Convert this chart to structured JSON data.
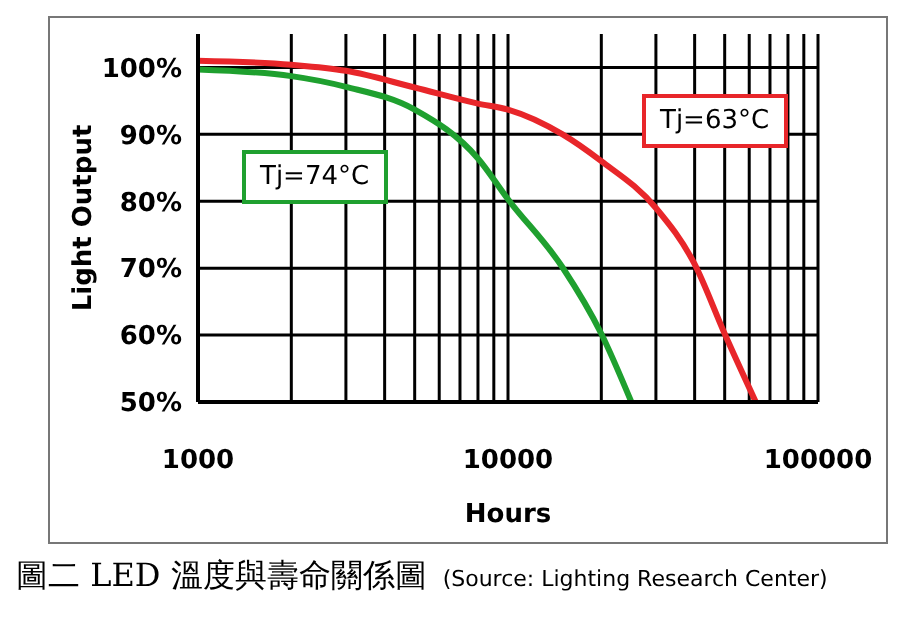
{
  "chart_data": {
    "type": "line",
    "title": "圖二 LED 溫度與壽命關係圖",
    "xlabel": "Hours",
    "ylabel": "Light Output",
    "annotations": [
      "(Source: Lighting Research Center)"
    ],
    "log": "x",
    "grid": true,
    "marker": "none",
    "line_style": "solid",
    "legend": false,
    "xlim": [
      1000,
      100000
    ],
    "xticks": [
      1000,
      10000,
      100000
    ],
    "ylim": [
      50,
      105
    ],
    "yticks": [
      {
        "value": 50,
        "label": "50%"
      },
      {
        "value": 60,
        "label": "60%"
      },
      {
        "value": 70,
        "label": "70%"
      },
      {
        "value": 80,
        "label": "80%"
      },
      {
        "value": 90,
        "label": "90%"
      },
      {
        "value": 100,
        "label": "100%"
      }
    ],
    "series": [
      {
        "name": "Tj=63°C",
        "color": "#e8262a",
        "x": [
          1000,
          2000,
          3000,
          5000,
          8000,
          10000,
          15000,
          20000,
          30000,
          40000,
          50000,
          63000
        ],
        "values": [
          101,
          100.4,
          99.5,
          97,
          94.6,
          93.7,
          90,
          86,
          79,
          70.6,
          60.2,
          50
        ]
      },
      {
        "name": "Tj=74°C",
        "color": "#1fa02f",
        "x": [
          1000,
          2000,
          3000,
          5000,
          8000,
          10000,
          15000,
          20000,
          25000
        ],
        "values": [
          99.7,
          98.7,
          97.1,
          93.7,
          86.4,
          80.3,
          70.1,
          60.2,
          50
        ]
      }
    ]
  }
}
